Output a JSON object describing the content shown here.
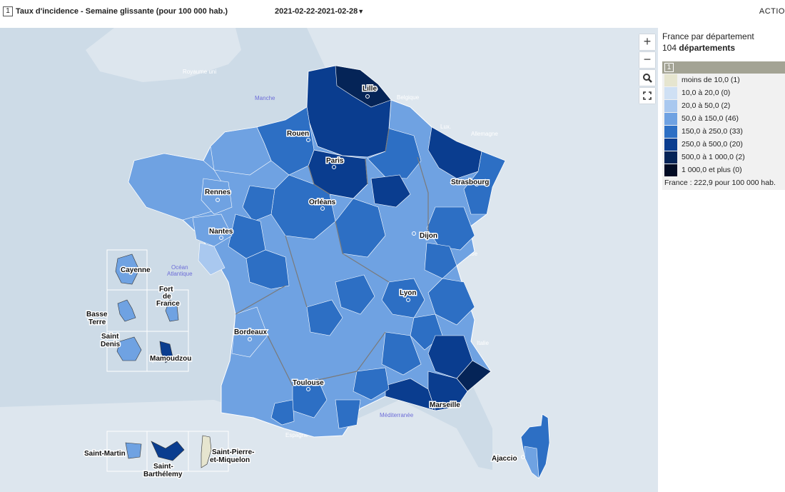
{
  "header": {
    "indicator_number": "1",
    "indicator_title": "Taux d'incidence - Semaine glissante (pour 100 000 hab.)",
    "period": "2021-02-22-2021-02-28",
    "period_caret": "▼",
    "actions": "ACTIO"
  },
  "map_controls": {
    "zoom_in": "+",
    "zoom_out": "−"
  },
  "legend": {
    "scope": "France par département",
    "count_number": "104",
    "count_label": "départements",
    "header_number": "1",
    "classes": [
      {
        "label": "moins de 10,0 (1)",
        "color": "#e6e5cf"
      },
      {
        "label": "10,0 à 20,0 (0)",
        "color": "#cfe0f4"
      },
      {
        "label": "20,0 à 50,0 (2)",
        "color": "#a9c8ef"
      },
      {
        "label": "50,0 à 150,0 (46)",
        "color": "#6fa2e2"
      },
      {
        "label": "150,0 à 250,0 (33)",
        "color": "#2d6fc4"
      },
      {
        "label": "250,0 à 500,0 (20)",
        "color": "#0a3d8f"
      },
      {
        "label": "500,0 à 1 000,0 (2)",
        "color": "#052457"
      },
      {
        "label": "1 000,0 et plus (0)",
        "color": "#020c24"
      }
    ],
    "total": "France : 222,9 pour 100 000 hab."
  },
  "map_labels": {
    "cities": [
      "Lille",
      "Rouen",
      "Paris",
      "Strasbourg",
      "Rennes",
      "Orléans",
      "Nantes",
      "Dijon",
      "Lyon",
      "Bordeaux",
      "Toulouse",
      "Marseille",
      "Ajaccio"
    ],
    "overseas": [
      "Cayenne",
      "Fort de France",
      "Basse Terre",
      "Saint Denis",
      "Mamoudzou",
      "Saint-Martin",
      "Saint-Barthélemy",
      "Saint-Pierre-et-Miquelon"
    ],
    "seas": [
      "Manche",
      "Océan Atlantique",
      "Méditerranée"
    ],
    "countries": [
      "Royaume uni",
      "Belgique",
      "Lux.",
      "Allemagne",
      "Suisse",
      "Italie",
      "Espagne"
    ]
  }
}
